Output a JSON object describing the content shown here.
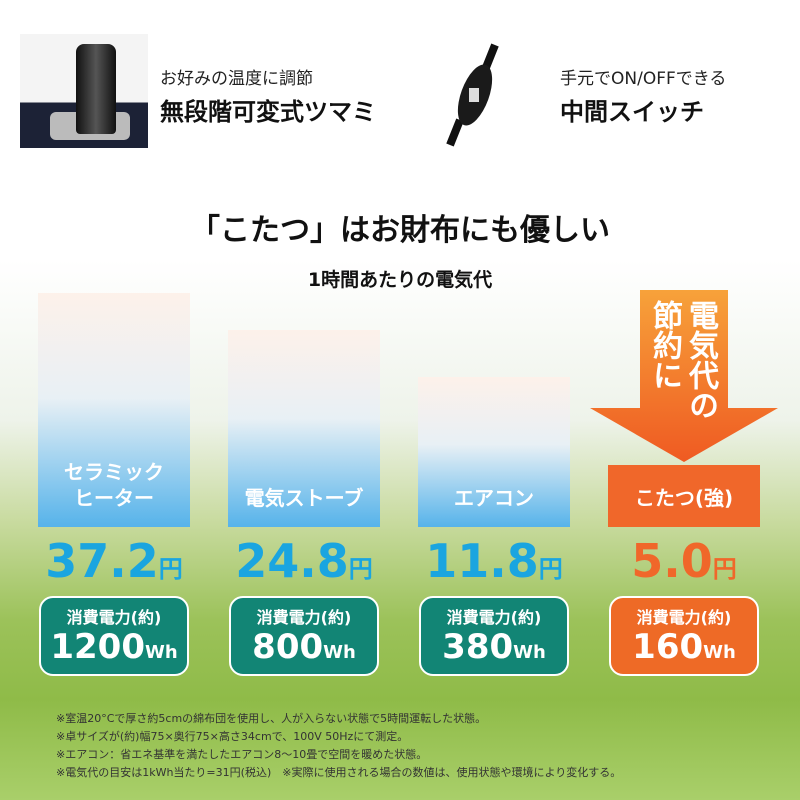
{
  "features": [
    {
      "small": "お好みの温度に調節",
      "big": "無段階可変式ツマミ"
    },
    {
      "small": "手元でON/OFFできる",
      "big": "中間スイッチ"
    }
  ],
  "title": "「こたつ」はお財布にも優しい",
  "subtitle": "1時間あたりの電気代",
  "arrow_text": "電気代の節約に",
  "chart_data": {
    "type": "bar",
    "title": "1時間あたりの電気代",
    "categories": [
      "セラミック\nヒーター",
      "電気ストーブ",
      "エアコン",
      "こたつ(強)"
    ],
    "values": [
      37.2,
      24.8,
      11.8,
      5.0
    ],
    "unit": "円",
    "power_label": "消費電力(約)",
    "power_values": [
      1200,
      800,
      380,
      160
    ],
    "power_unit": "Wh",
    "colors": {
      "bar": "#56b3ea",
      "highlight": "#f0672a",
      "pill": "#128575"
    }
  },
  "notes": [
    "※室温20°Cで厚さ約5cmの綿布団を使用し、人が入らない状態で5時間運転した状態。",
    "※卓サイズが(約)幅75×奥行75×高さ34cmで、100V 50Hzにて測定。",
    "※エアコン：省エネ基準を満たしたエアコン8～10畳で空間を暖めた状態。",
    "※電気代の目安は1kWh当たり=31円(税込)　※実際に使用される場合の数値は、使用状態や環境により変化する。"
  ]
}
